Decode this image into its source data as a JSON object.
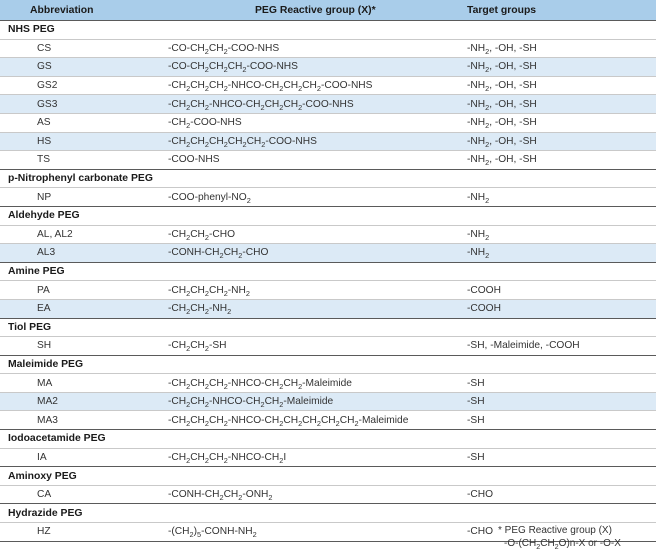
{
  "header": {
    "col1": "Abbreviation",
    "col2": "PEG Reactive group (X)*",
    "col3": "Target groups"
  },
  "categories": [
    {
      "name": "NHS PEG",
      "rows": [
        {
          "abbr": "CS",
          "group": "-CO-CH2CH2-COO-NHS",
          "target": "-NH2, -OH, -SH"
        },
        {
          "abbr": "GS",
          "group": "-CO-CH2CH2CH2-COO-NHS",
          "target": "-NH2, -OH, -SH"
        },
        {
          "abbr": "GS2",
          "group": "-CH2CH2CH2-NHCO-CH2CH2CH2-COO-NHS",
          "target": "-NH2, -OH, -SH"
        },
        {
          "abbr": "GS3",
          "group": "-CH2CH2-NHCO-CH2CH2CH2-COO-NHS",
          "target": "-NH2, -OH, -SH"
        },
        {
          "abbr": "AS",
          "group": "-CH2-COO-NHS",
          "target": "-NH2, -OH, -SH"
        },
        {
          "abbr": "HS",
          "group": "-CH2CH2CH2CH2CH2-COO-NHS",
          "target": "-NH2, -OH, -SH"
        },
        {
          "abbr": "TS",
          "group": "-COO-NHS",
          "target": "-NH2, -OH, -SH"
        }
      ]
    },
    {
      "name": "p-Nitrophenyl carbonate PEG",
      "rows": [
        {
          "abbr": "NP",
          "group": "-COO-phenyl-NO2",
          "target": "-NH2"
        }
      ]
    },
    {
      "name": "Aldehyde PEG",
      "rows": [
        {
          "abbr": "AL, AL2",
          "group": "-CH2CH2-CHO",
          "target": "-NH2"
        },
        {
          "abbr": "AL3",
          "group": "-CONH-CH2CH2-CHO",
          "target": "-NH2"
        }
      ]
    },
    {
      "name": "Amine PEG",
      "rows": [
        {
          "abbr": "PA",
          "group": "-CH2CH2CH2-NH2",
          "target": "-COOH"
        },
        {
          "abbr": "EA",
          "group": "-CH2CH2-NH2",
          "target": "-COOH"
        }
      ]
    },
    {
      "name": "Tiol PEG",
      "rows": [
        {
          "abbr": "SH",
          "group": "-CH2CH2-SH",
          "target": "-SH, -Maleimide, -COOH"
        }
      ]
    },
    {
      "name": "Maleimide PEG",
      "rows": [
        {
          "abbr": "MA",
          "group": "-CH2CH2CH2-NHCO-CH2CH2-Maleimide",
          "target": "-SH"
        },
        {
          "abbr": "MA2",
          "group": "-CH2CH2-NHCO-CH2CH2-Maleimide",
          "target": "-SH"
        },
        {
          "abbr": "MA3",
          "group": "-CH2CH2CH2-NHCO-CH2CH2CH2CH2CH2-Maleimide",
          "target": "-SH"
        }
      ]
    },
    {
      "name": "Iodoacetamide PEG",
      "rows": [
        {
          "abbr": "IA",
          "group": "-CH2CH2CH2-NHCO-CH2I",
          "target": "-SH"
        }
      ]
    },
    {
      "name": "Aminoxy PEG",
      "rows": [
        {
          "abbr": "CA",
          "group": "-CONH-CH2CH2-ONH2",
          "target": "-CHO"
        }
      ]
    },
    {
      "name": "Hydrazide PEG",
      "rows": [
        {
          "abbr": "HZ",
          "group": "-(CH2)5-CONH-NH2",
          "target": "-CHO"
        }
      ]
    }
  ],
  "footnote": {
    "line1": "* PEG Reactive group (X)",
    "line2": "-O-(CH2CH2O)n-X  or  -O-X"
  },
  "colors": {
    "header_bg": "#a9cdea",
    "stripe_bg": "#dceaf6"
  }
}
